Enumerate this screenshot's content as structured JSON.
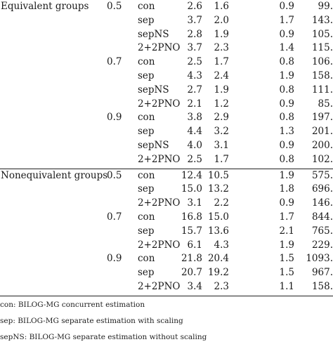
{
  "table": {
    "sections": [
      {
        "group": "Equivalent groups",
        "blocks": [
          {
            "level": "0.5",
            "rows": [
              {
                "method": "con",
                "v1": "2.6",
                "v2": "1.6",
                "v3": "0.9",
                "v4": "99."
              },
              {
                "method": "sep",
                "v1": "3.7",
                "v2": "2.0",
                "v3": "1.7",
                "v4": "143."
              },
              {
                "method": "sepNS",
                "v1": "2.8",
                "v2": "1.9",
                "v3": "0.9",
                "v4": "105."
              },
              {
                "method": "2+2PNO",
                "v1": "3.7",
                "v2": "2.3",
                "v3": "1.4",
                "v4": "115."
              }
            ]
          },
          {
            "level": "0.7",
            "rows": [
              {
                "method": "con",
                "v1": "2.5",
                "v2": "1.7",
                "v3": "0.8",
                "v4": "106."
              },
              {
                "method": "sep",
                "v1": "4.3",
                "v2": "2.4",
                "v3": "1.9",
                "v4": "158."
              },
              {
                "method": "sepNS",
                "v1": "2.7",
                "v2": "1.9",
                "v3": "0.8",
                "v4": "111."
              },
              {
                "method": "2+2PNO",
                "v1": "2.1",
                "v2": "1.2",
                "v3": "0.9",
                "v4": "85."
              }
            ]
          },
          {
            "level": "0.9",
            "rows": [
              {
                "method": "con",
                "v1": "3.8",
                "v2": "2.9",
                "v3": "0.8",
                "v4": "197."
              },
              {
                "method": "sep",
                "v1": "4.4",
                "v2": "3.2",
                "v3": "1.3",
                "v4": "201."
              },
              {
                "method": "sepNS",
                "v1": "4.0",
                "v2": "3.1",
                "v3": "0.9",
                "v4": "200."
              },
              {
                "method": "2+2PNO",
                "v1": "2.5",
                "v2": "1.7",
                "v3": "0.8",
                "v4": "102."
              }
            ]
          }
        ]
      },
      {
        "group": "Nonequivalent groups",
        "blocks": [
          {
            "level": "0.5",
            "rows": [
              {
                "method": "con",
                "v1": "12.4",
                "v2": "10.5",
                "v3": "1.9",
                "v4": "575."
              },
              {
                "method": "sep",
                "v1": "15.0",
                "v2": "13.2",
                "v3": "1.8",
                "v4": "696."
              },
              {
                "method": "2+2PNO",
                "v1": "3.1",
                "v2": "2.2",
                "v3": "0.9",
                "v4": "146."
              }
            ]
          },
          {
            "level": "0.7",
            "rows": [
              {
                "method": "con",
                "v1": "16.8",
                "v2": "15.0",
                "v3": "1.7",
                "v4": "844."
              },
              {
                "method": "sep",
                "v1": "15.7",
                "v2": "13.6",
                "v3": "2.1",
                "v4": "765."
              },
              {
                "method": "2+2PNO",
                "v1": "6.1",
                "v2": "4.3",
                "v3": "1.9",
                "v4": "229."
              }
            ]
          },
          {
            "level": "0.9",
            "rows": [
              {
                "method": "con",
                "v1": "21.8",
                "v2": "20.4",
                "v3": "1.5",
                "v4": "1093."
              },
              {
                "method": "sep",
                "v1": "20.7",
                "v2": "19.2",
                "v3": "1.5",
                "v4": "967."
              },
              {
                "method": "2+2PNO",
                "v1": "3.4",
                "v2": "2.3",
                "v3": "1.1",
                "v4": "158."
              }
            ]
          }
        ]
      }
    ]
  },
  "notes": [
    "con: BILOG-MG concurrent estimation",
    "sep: BILOG-MG separate estimation with scaling",
    "sepNS: BILOG-MG separate estimation without scaling"
  ]
}
